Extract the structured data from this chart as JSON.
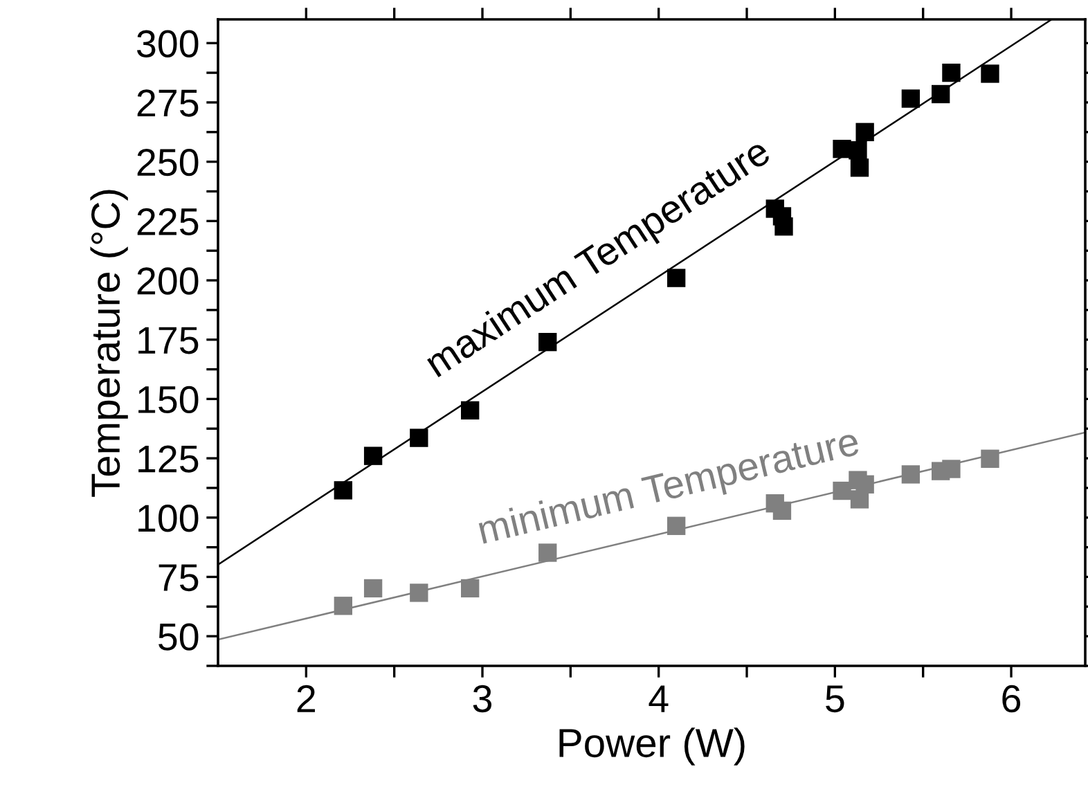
{
  "chart_data": {
    "type": "scatter",
    "xlabel": "Power (W)",
    "ylabel": "Temperature (°C)",
    "xlim": [
      1.5,
      6.42
    ],
    "ylim": [
      37.5,
      310
    ],
    "xticks": [
      2,
      {
        "value": 2.5,
        "label": null
      },
      3,
      {
        "value": 3.5,
        "label": null
      },
      4,
      {
        "value": 4.5,
        "label": null
      },
      5,
      {
        "value": 5.5,
        "label": null
      },
      6
    ],
    "yticks": [
      {
        "value": 37.5,
        "label": null
      },
      50,
      {
        "value": 62.5,
        "label": null
      },
      75,
      {
        "value": 87.5,
        "label": null
      },
      100,
      {
        "value": 112.5,
        "label": null
      },
      125,
      {
        "value": 137.5,
        "label": null
      },
      150,
      {
        "value": 162.5,
        "label": null
      },
      175,
      {
        "value": 187.5,
        "label": null
      },
      200,
      {
        "value": 212.5,
        "label": null
      },
      225,
      {
        "value": 237.5,
        "label": null
      },
      250,
      {
        "value": 262.5,
        "label": null
      },
      275,
      {
        "value": 287.5,
        "label": null
      },
      300
    ],
    "grid": false,
    "legend": false,
    "marker": "square",
    "series": [
      {
        "color": "#000000",
        "x": [
          2.21,
          2.38,
          2.64,
          2.93,
          3.37,
          4.1,
          4.66,
          4.7,
          4.71,
          5.04,
          5.13,
          5.14,
          5.17,
          5.43,
          5.6,
          5.66,
          5.88
        ],
        "values": [
          111.5,
          126,
          133.6,
          145.2,
          174,
          201,
          230.2,
          227,
          222.7,
          255.4,
          254.8,
          247.5,
          262.5,
          276.6,
          278.5,
          287.5,
          287.1
        ]
      },
      {
        "color": "#808080",
        "x": [
          2.21,
          2.38,
          2.64,
          2.93,
          3.37,
          4.1,
          4.66,
          4.7,
          5.04,
          5.13,
          5.14,
          5.17,
          5.43,
          5.6,
          5.66,
          5.88
        ],
        "values": [
          62.8,
          70.2,
          68.3,
          70.2,
          85.2,
          96.5,
          106,
          102.9,
          111.3,
          115.8,
          107.7,
          114,
          118.2,
          119.6,
          120.5,
          124.8
        ]
      },
      {
        "type": "line",
        "name": "maximum Temperature",
        "marker": "none",
        "color": "#000000",
        "x": [
          1.5,
          6.23
        ],
        "values": [
          80.2,
          310
        ]
      },
      {
        "type": "line",
        "name": "minimum Temperature",
        "marker": "none",
        "color": "#808080",
        "x": [
          1.5,
          6.42
        ],
        "values": [
          48.6,
          135.9
        ]
      }
    ]
  }
}
